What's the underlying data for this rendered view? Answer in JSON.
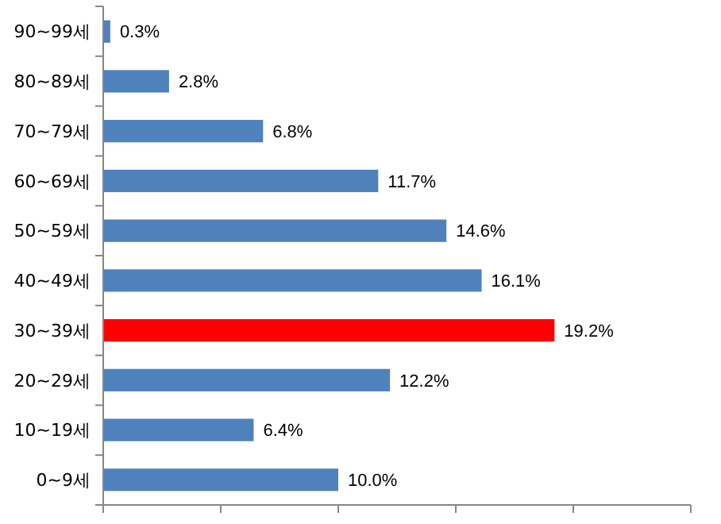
{
  "chart_data": {
    "type": "bar",
    "orientation": "horizontal",
    "categories": [
      "90~99세",
      "80~89세",
      "70~79세",
      "60~69세",
      "50~59세",
      "40~49세",
      "30~39세",
      "20~29세",
      "10~19세",
      "0~9세"
    ],
    "values": [
      0.3,
      2.8,
      6.8,
      11.7,
      14.6,
      16.1,
      19.2,
      12.2,
      6.4,
      10.0
    ],
    "value_labels": [
      "0.3%",
      "2.8%",
      "6.8%",
      "11.7%",
      "14.6%",
      "16.1%",
      "19.2%",
      "12.2%",
      "6.4%",
      "10.0%"
    ],
    "colors": [
      "#4f81bd",
      "#4f81bd",
      "#4f81bd",
      "#4f81bd",
      "#4f81bd",
      "#4f81bd",
      "#ff0000",
      "#4f81bd",
      "#4f81bd",
      "#4f81bd"
    ],
    "xlim": [
      0,
      25
    ],
    "xticks": [
      {
        "value": 0,
        "label": null
      },
      {
        "value": 5,
        "label": null
      },
      {
        "value": 10,
        "label": null
      },
      {
        "value": 15,
        "label": null
      },
      {
        "value": 20,
        "label": null
      },
      {
        "value": 25,
        "label": null
      }
    ],
    "tick_labels": "y",
    "grid": false
  }
}
